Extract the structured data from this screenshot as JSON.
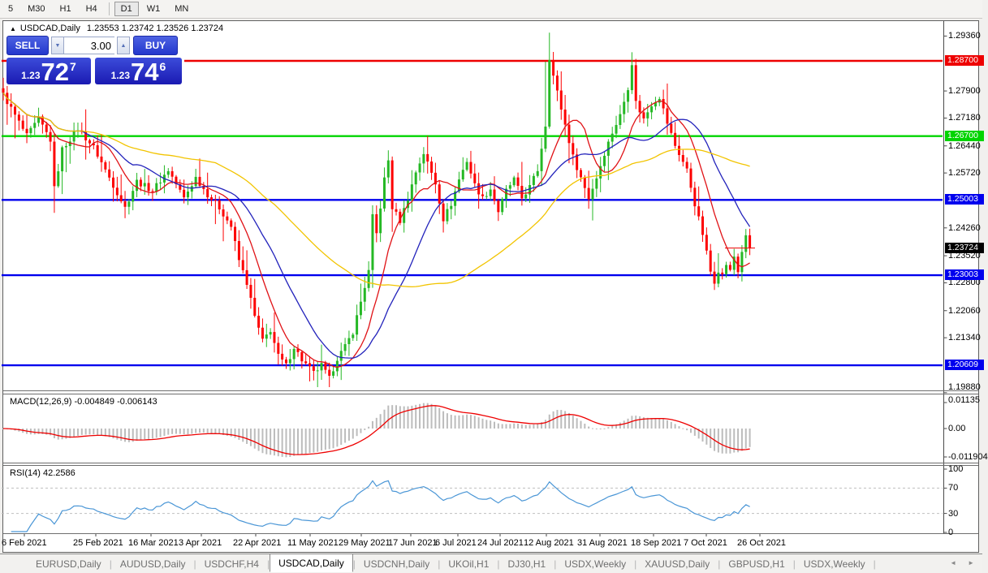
{
  "toolbar": {
    "items": [
      {
        "label": "5",
        "active": false
      },
      {
        "label": "M30",
        "active": false
      },
      {
        "label": "H1",
        "active": false
      },
      {
        "label": "H4",
        "active": false
      },
      {
        "label": "|",
        "sep": true
      },
      {
        "label": "D1",
        "active": true
      },
      {
        "label": "W1",
        "active": false
      },
      {
        "label": "MN",
        "active": false
      }
    ]
  },
  "chart": {
    "collapse_icon": "▲",
    "symbol": "USDCAD,Daily",
    "ohlc": "1.23553 1.23742 1.23526 1.23724"
  },
  "trade": {
    "sell_label": "SELL",
    "buy_label": "BUY",
    "volume": "3.00",
    "spinner_down_icon": "▼",
    "spinner_up_icon": "▲",
    "sell_price": {
      "prefix": "1.23",
      "big": "72",
      "sup": "7"
    },
    "buy_price": {
      "prefix": "1.23",
      "big": "74",
      "sup": "6"
    }
  },
  "price_axis": {
    "ticks": [
      "1.29360",
      "1.27900",
      "1.27180",
      "1.26440",
      "1.25720",
      "1.24260",
      "1.23520",
      "1.22800",
      "1.22060",
      "1.21340",
      "1.19880"
    ],
    "flags": [
      {
        "label": "1.28700",
        "value": 1.287,
        "color": "#ee0000"
      },
      {
        "label": "1.26700",
        "value": 1.267,
        "color": "#00d400"
      },
      {
        "label": "1.25003",
        "value": 1.25003,
        "color": "#0000ee"
      },
      {
        "label": "1.23003",
        "value": 1.23003,
        "color": "#0000ee"
      },
      {
        "label": "1.20609",
        "value": 1.20609,
        "color": "#0000ee"
      }
    ],
    "current": {
      "label": "1.23724",
      "value": 1.23724,
      "color": "#000000"
    }
  },
  "indicators": {
    "macd": {
      "label": "MACD(12,26,9) -0.004849 -0.006143",
      "axis": [
        "0.01135",
        "0.00",
        "-0.011904"
      ],
      "fast": 12,
      "slow": 26,
      "signal": 9,
      "value": -0.004849,
      "signal_value": -0.006143
    },
    "rsi": {
      "label": "RSI(14) 42.2586",
      "axis": [
        "100",
        "70",
        "30",
        "0"
      ],
      "period": 14,
      "value": 42.2586,
      "levels": [
        70,
        30
      ]
    }
  },
  "dates": {
    "labels": [
      "6 Feb 2021",
      "25 Feb 2021",
      "16 Mar 2021",
      "3 Apr 2021",
      "22 Apr 2021",
      "11 May 2021",
      "29 May 2021",
      "17 Jun 2021",
      "6 Jul 2021",
      "24 Jul 2021",
      "12 Aug 2021",
      "31 Aug 2021",
      "18 Sep 2021",
      "7 Oct 2021",
      "26 Oct 2021"
    ],
    "x": [
      2,
      90,
      158,
      220,
      287,
      354,
      417,
      478,
      536,
      588,
      645,
      711,
      777,
      842,
      908
    ]
  },
  "tabs": {
    "items": [
      "EURUSD,Daily",
      "AUDUSD,Daily",
      "USDCHF,H4",
      "USDCAD,Daily",
      "USDCNH,Daily",
      "UKOil,H1",
      "DJ30,H1",
      "USDX,Weekly",
      "XAUUSD,Daily",
      "GBPUSD,H1",
      "USDX,Weekly"
    ],
    "active_index": 3,
    "prev_icon": "◄",
    "next_icon": "►"
  },
  "chart_data": {
    "type": "candlestick",
    "symbol": "USDCAD",
    "timeframe": "Daily",
    "ohlc_readout": {
      "open": 1.23553,
      "high": 1.23742,
      "low": 1.23526,
      "close": 1.23724
    },
    "bid": 1.23727,
    "ask": 1.23746,
    "hlines": [
      {
        "value": 1.287,
        "color": "#ee0000"
      },
      {
        "value": 1.267,
        "color": "#00d400"
      },
      {
        "value": 1.25003,
        "color": "#0000ee"
      },
      {
        "value": 1.23003,
        "color": "#0000ee"
      },
      {
        "value": 1.20609,
        "color": "#0000ee"
      }
    ],
    "axis_range": [
      1.1988,
      1.2968
    ],
    "num_candles": 191,
    "last_close": 1.23724,
    "jitter": 0.0016,
    "close_anchors": [
      [
        0,
        1.278
      ],
      [
        3,
        1.2725
      ],
      [
        6,
        1.267
      ],
      [
        9,
        1.2715
      ],
      [
        12,
        1.266
      ],
      [
        13,
        1.253
      ],
      [
        15,
        1.2635
      ],
      [
        19,
        1.269
      ],
      [
        23,
        1.264
      ],
      [
        27,
        1.256
      ],
      [
        31,
        1.248
      ],
      [
        34,
        1.255
      ],
      [
        38,
        1.2525
      ],
      [
        42,
        1.258
      ],
      [
        46,
        1.2505
      ],
      [
        49,
        1.256
      ],
      [
        52,
        1.2515
      ],
      [
        55,
        1.248
      ],
      [
        58,
        1.243
      ],
      [
        60,
        1.234
      ],
      [
        62,
        1.228
      ],
      [
        64,
        1.219
      ],
      [
        66,
        1.2125
      ],
      [
        68,
        1.2155
      ],
      [
        70,
        1.2085
      ],
      [
        72,
        1.206
      ],
      [
        74,
        1.211
      ],
      [
        76,
        1.2075
      ],
      [
        79,
        1.204
      ],
      [
        81,
        1.206
      ],
      [
        83,
        1.2025
      ],
      [
        85,
        1.208
      ],
      [
        87,
        1.211
      ],
      [
        89,
        1.215
      ],
      [
        91,
        1.223
      ],
      [
        93,
        1.231
      ],
      [
        94,
        1.2455
      ],
      [
        95,
        1.241
      ],
      [
        97,
        1.2555
      ],
      [
        98,
        1.2605
      ],
      [
        99,
        1.248
      ],
      [
        101,
        1.2445
      ],
      [
        103,
        1.2505
      ],
      [
        105,
        1.2575
      ],
      [
        107,
        1.2625
      ],
      [
        110,
        1.2545
      ],
      [
        112,
        1.245
      ],
      [
        114,
        1.249
      ],
      [
        116,
        1.2555
      ],
      [
        118,
        1.2605
      ],
      [
        120,
        1.254
      ],
      [
        122,
        1.2505
      ],
      [
        124,
        1.253
      ],
      [
        126,
        1.247
      ],
      [
        128,
        1.2525
      ],
      [
        130,
        1.2555
      ],
      [
        132,
        1.2505
      ],
      [
        134,
        1.2535
      ],
      [
        136,
        1.258
      ],
      [
        138,
        1.27
      ],
      [
        139,
        1.288
      ],
      [
        140,
        1.283
      ],
      [
        143,
        1.27
      ],
      [
        145,
        1.2615
      ],
      [
        147,
        1.256
      ],
      [
        149,
        1.2505
      ],
      [
        151,
        1.256
      ],
      [
        153,
        1.2625
      ],
      [
        155,
        1.268
      ],
      [
        157,
        1.2725
      ],
      [
        159,
        1.28
      ],
      [
        160,
        1.2865
      ],
      [
        161,
        1.276
      ],
      [
        163,
        1.2715
      ],
      [
        165,
        1.2755
      ],
      [
        167,
        1.2775
      ],
      [
        169,
        1.2705
      ],
      [
        171,
        1.2645
      ],
      [
        174,
        1.258
      ],
      [
        176,
        1.249
      ],
      [
        177,
        1.245
      ],
      [
        178,
        1.241
      ],
      [
        179,
        1.236
      ],
      [
        180,
        1.231
      ],
      [
        181,
        1.2285
      ],
      [
        182,
        1.2315
      ],
      [
        183,
        1.23
      ],
      [
        184,
        1.233
      ],
      [
        185,
        1.231
      ],
      [
        186,
        1.235
      ],
      [
        187,
        1.231
      ],
      [
        188,
        1.2365
      ],
      [
        189,
        1.24
      ],
      [
        190,
        1.23724
      ]
    ],
    "spikes": {
      "13": {
        "low": 1.2466
      },
      "83": {
        "low": 1.1988
      },
      "138": {
        "high": 1.2868
      },
      "139": {
        "high": 1.2945
      },
      "160": {
        "high": 1.2893
      },
      "183": {
        "low": 1.2289
      },
      "187": {
        "low": 1.2292
      }
    },
    "moving_averages": [
      {
        "period": 10,
        "color": "#e01216"
      },
      {
        "period": 21,
        "color": "#2222bb"
      },
      {
        "period": 55,
        "color": "#f2c400"
      }
    ],
    "colors": {
      "bull": "#25b825",
      "bear": "#fd0000",
      "macd_hist": "#bcbcbc",
      "macd_signal": "#ee0000",
      "rsi_line": "#4a96d6",
      "rsi_levels": "#bfbfbf"
    }
  }
}
